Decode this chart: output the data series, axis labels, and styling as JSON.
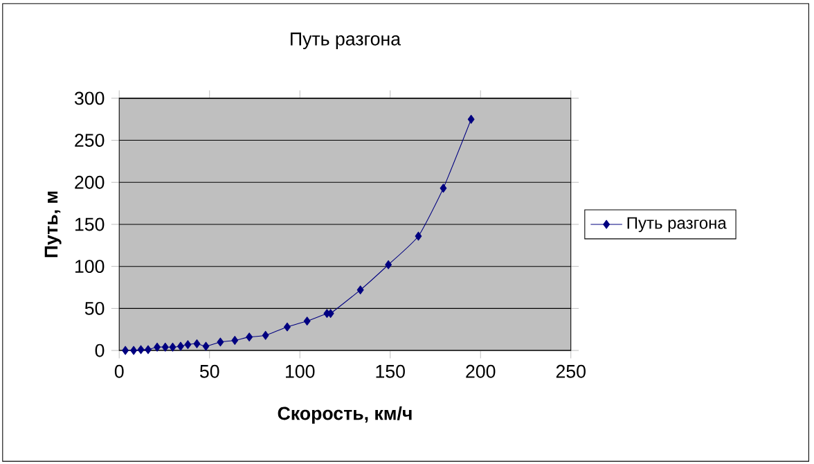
{
  "chart_data": {
    "type": "line",
    "title": "Путь разгона",
    "xlabel": "Скорость, км/ч",
    "ylabel": "Путь, м",
    "xlim": [
      0,
      250
    ],
    "xticks": [
      0,
      50,
      100,
      150,
      200,
      250
    ],
    "ylim": [
      0,
      300
    ],
    "yticks": [
      0,
      50,
      100,
      150,
      200,
      250,
      300
    ],
    "grid": "y",
    "legend": "right",
    "marker": "diamond",
    "line_style": "solid",
    "series": [
      {
        "name": "Путь разгона",
        "color": "#000080",
        "x": [
          3.4,
          8,
          12,
          16,
          21,
          25.5,
          29.6,
          34,
          38,
          43,
          48,
          56,
          64,
          72,
          81,
          93,
          104,
          115,
          117,
          133.5,
          149,
          165.6,
          179.4,
          194.8
        ],
        "values": [
          0,
          0,
          1,
          1,
          4,
          4,
          4,
          5,
          7,
          8,
          5,
          10,
          12,
          16,
          18,
          28,
          35,
          44,
          44,
          72,
          102,
          136,
          193,
          275
        ]
      }
    ]
  }
}
